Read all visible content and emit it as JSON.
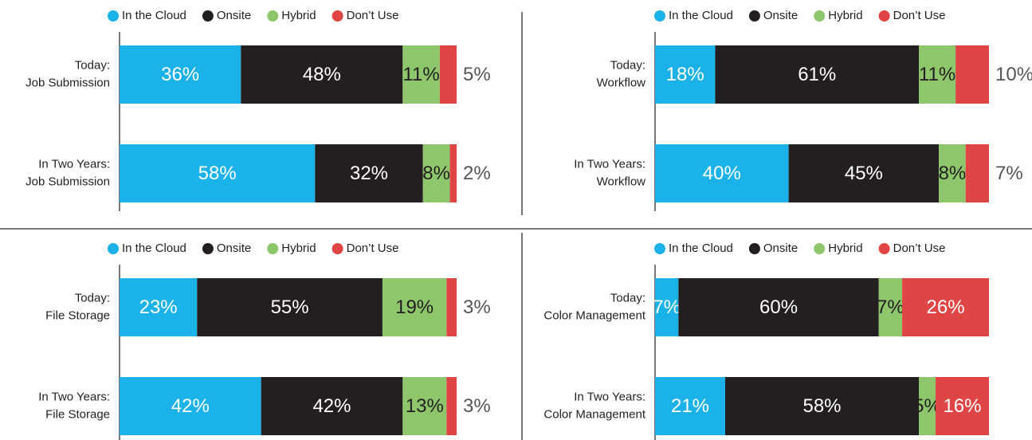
{
  "chart_data": [
    {
      "type": "bar",
      "orientation": "horizontal",
      "stacked": true,
      "xlim": [
        0,
        100
      ],
      "categories": [
        [
          "Today:",
          "Job Submission"
        ],
        [
          "In Two Years:",
          "Job Submission"
        ]
      ],
      "series": [
        {
          "name": "In the Cloud",
          "color": "#1ab2e8",
          "values": [
            36,
            58
          ],
          "value_labels": [
            "36%",
            "58%"
          ]
        },
        {
          "name": "Onsite",
          "color": "#231f20",
          "values": [
            48,
            32
          ],
          "value_labels": [
            "48%",
            "32%"
          ]
        },
        {
          "name": "Hybrid",
          "color": "#8dc66b",
          "values": [
            11,
            8
          ],
          "value_labels": [
            "11%",
            "8%"
          ]
        },
        {
          "name": "Don’t Use",
          "color": "#e04545",
          "values": [
            5,
            2
          ],
          "value_labels": [
            "5%",
            "2%"
          ]
        }
      ]
    },
    {
      "type": "bar",
      "orientation": "horizontal",
      "stacked": true,
      "xlim": [
        0,
        100
      ],
      "categories": [
        [
          "Today:",
          "Workflow"
        ],
        [
          "In Two Years:",
          "Workflow"
        ]
      ],
      "series": [
        {
          "name": "In the Cloud",
          "color": "#1ab2e8",
          "values": [
            18,
            40
          ],
          "value_labels": [
            "18%",
            "40%"
          ]
        },
        {
          "name": "Onsite",
          "color": "#231f20",
          "values": [
            61,
            45
          ],
          "value_labels": [
            "61%",
            "45%"
          ]
        },
        {
          "name": "Hybrid",
          "color": "#8dc66b",
          "values": [
            11,
            8
          ],
          "value_labels": [
            "11%",
            "8%"
          ]
        },
        {
          "name": "Don’t Use",
          "color": "#e04545",
          "values": [
            10,
            7
          ],
          "value_labels": [
            "10%",
            "7%"
          ]
        }
      ]
    },
    {
      "type": "bar",
      "orientation": "horizontal",
      "stacked": true,
      "xlim": [
        0,
        100
      ],
      "categories": [
        [
          "Today:",
          "File Storage"
        ],
        [
          "In Two Years:",
          "File Storage"
        ]
      ],
      "series": [
        {
          "name": "In the Cloud",
          "color": "#1ab2e8",
          "values": [
            23,
            42
          ],
          "value_labels": [
            "23%",
            "42%"
          ]
        },
        {
          "name": "Onsite",
          "color": "#231f20",
          "values": [
            55,
            42
          ],
          "value_labels": [
            "55%",
            "42%"
          ]
        },
        {
          "name": "Hybrid",
          "color": "#8dc66b",
          "values": [
            19,
            13
          ],
          "value_labels": [
            "19%",
            "13%"
          ]
        },
        {
          "name": "Don’t Use",
          "color": "#e04545",
          "values": [
            3,
            3
          ],
          "value_labels": [
            "3%",
            "3%"
          ]
        }
      ]
    },
    {
      "type": "bar",
      "orientation": "horizontal",
      "stacked": true,
      "xlim": [
        0,
        100
      ],
      "categories": [
        [
          "Today:",
          "Color Management"
        ],
        [
          "In Two Years:",
          "Color Management"
        ]
      ],
      "series": [
        {
          "name": "In the Cloud",
          "color": "#1ab2e8",
          "values": [
            7,
            21
          ],
          "value_labels": [
            "7%",
            "21%"
          ]
        },
        {
          "name": "Onsite",
          "color": "#231f20",
          "values": [
            60,
            58
          ],
          "value_labels": [
            "60%",
            "58%"
          ]
        },
        {
          "name": "Hybrid",
          "color": "#8dc66b",
          "values": [
            7,
            5
          ],
          "value_labels": [
            "7%",
            "5%"
          ]
        },
        {
          "name": "Don’t Use",
          "color": "#e04545",
          "values": [
            26,
            16
          ],
          "value_labels": [
            "26%",
            "16%"
          ]
        }
      ]
    }
  ]
}
